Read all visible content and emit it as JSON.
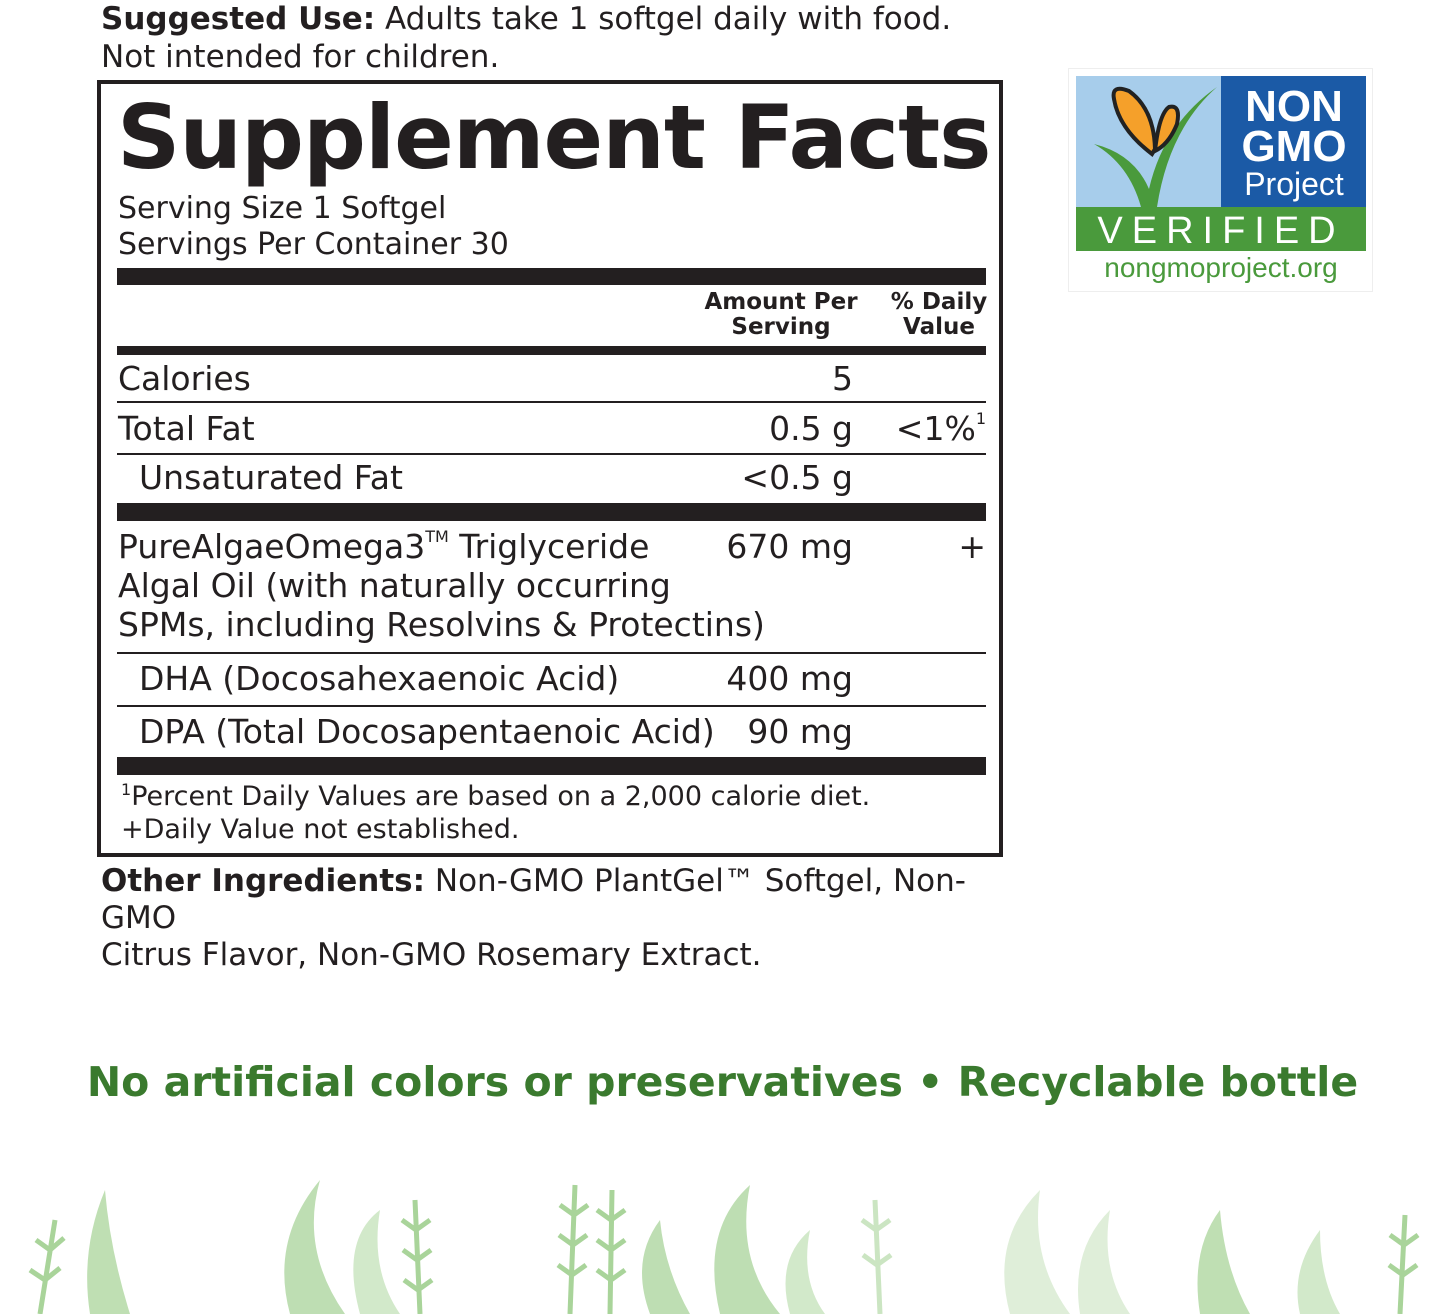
{
  "suggested_use": {
    "label": "Suggested Use:",
    "text": " Adults take 1 softgel daily with food.",
    "line2": "Not intended for children."
  },
  "facts": {
    "title": "Supplement Facts",
    "serving_size": "Serving Size 1 Softgel",
    "servings_per_container": "Servings Per Container 30",
    "header_amount_1": "Amount Per",
    "header_amount_2": "Serving",
    "header_dv_1": "% Daily",
    "header_dv_2": "Value",
    "rows": [
      {
        "name": "Calories",
        "amount": "5",
        "dv": ""
      },
      {
        "name": "Total Fat",
        "amount": "0.5 g",
        "dv": "<1%",
        "dv_sup": "1"
      },
      {
        "name": "Unsaturated Fat",
        "amount": "<0.5 g",
        "dv": ""
      },
      {
        "name_1": "PureAlgaeOmega3",
        "name_sup": "TM",
        "name_1b": " Triglyceride",
        "name_2": "Algal Oil (with naturally occurring",
        "name_3": "SPMs, including Resolvins & Protectins)",
        "amount": "670 mg",
        "dv": "+"
      },
      {
        "name": "DHA (Docosahexaenoic Acid)",
        "amount": "400 mg",
        "dv": ""
      },
      {
        "name": "DPA (Total Docosapentaenoic Acid)",
        "amount": "90 mg",
        "dv": ""
      }
    ],
    "footnote_sup": "1",
    "footnote_1": "Percent Daily Values are based on a 2,000 calorie diet.",
    "footnote_2": "+Daily Value not established."
  },
  "other_ingredients": {
    "label": "Other Ingredients:",
    "text": " Non-GMO PlantGel™ Softgel, Non-GMO",
    "line2": "Citrus Flavor, Non-GMO Rosemary Extract."
  },
  "badge": {
    "line1": "NON",
    "line2": "GMO",
    "line3": "Project",
    "verified": "VERIFIED",
    "url": "nongmoproject.org",
    "colors": {
      "blue": "#1b5aa6",
      "green": "#4a9a3c",
      "sky": "#a7cdeb",
      "butterfly": "#f5a02a"
    }
  },
  "tagline": "No artificial colors or preservatives • Recyclable bottle",
  "colors": {
    "text": "#231f20",
    "tagline": "#3a7a2e",
    "seaweed": "#a9d49a"
  }
}
